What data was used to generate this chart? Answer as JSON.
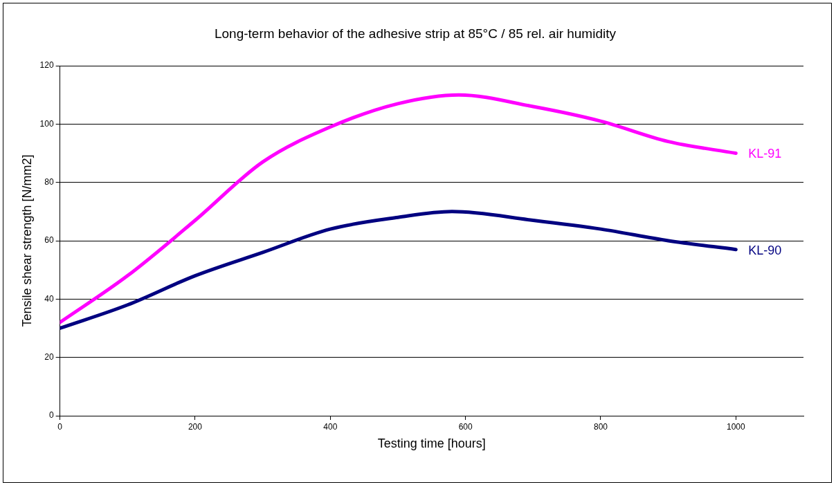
{
  "chart_data": {
    "type": "line",
    "title": "Long-term behavior of the adhesive strip at 85°C / 85 rel. air humidity",
    "xlabel": "Testing time [hours]",
    "ylabel": "Tensile shear strength [N/mm2]",
    "x": [
      0,
      100,
      200,
      300,
      400,
      500,
      590,
      700,
      800,
      900,
      1000
    ],
    "series": [
      {
        "name": "KL-91",
        "color": "#ff00ff",
        "values": [
          32,
          48,
          67,
          87,
          99,
          107,
          110,
          106,
          101,
          94,
          90
        ]
      },
      {
        "name": "KL-90",
        "color": "#000080",
        "x": [
          0,
          100,
          200,
          300,
          400,
          500,
          580,
          700,
          800,
          900,
          1000
        ],
        "values": [
          30,
          38,
          48,
          56,
          64,
          68,
          70,
          67,
          64,
          60,
          57
        ]
      }
    ],
    "xlim": [
      0,
      1100
    ],
    "xticks": [
      0,
      200,
      400,
      600,
      800,
      1000
    ],
    "ylim": [
      0,
      120
    ],
    "yticks": [
      0,
      20,
      40,
      60,
      80,
      100,
      120
    ],
    "grid": "y",
    "legend": false,
    "marker": "none",
    "line_style": "solid"
  }
}
